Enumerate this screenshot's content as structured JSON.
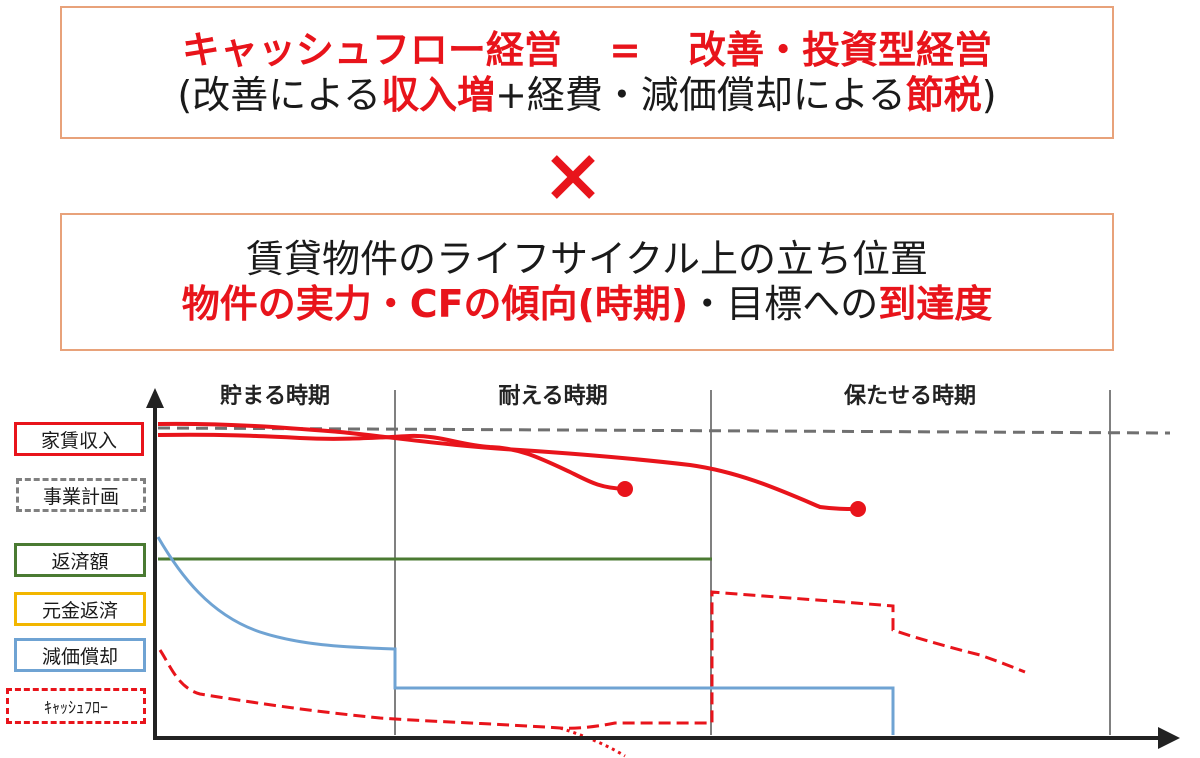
{
  "header": {
    "line1": {
      "a": "キャッシュフロー経営",
      "eq": "=",
      "b": "改善・投資型経営"
    },
    "line2": {
      "p0": "(改善による",
      "p1": "収入増",
      "p2": "+経費・減価償却による",
      "p3": "節税",
      "p4": ")"
    },
    "operator": "×"
  },
  "panel": {
    "line3": "賃貸物件のライフサイクル上の立ち位置",
    "line4": {
      "p0": "物件の実力・CFの傾向(時期)",
      "p1": "・目標への",
      "p2": "到達度"
    }
  },
  "chart": {
    "periods": [
      "貯まる時期",
      "耐える時期",
      "保たせる時期"
    ],
    "legend": [
      {
        "label": "家賃収入",
        "color": "#e8141b",
        "style": "solid"
      },
      {
        "label": "事業計画",
        "color": "#808080",
        "style": "dashed"
      },
      {
        "label": "返済額",
        "color": "#4a7a32",
        "style": "solid"
      },
      {
        "label": "元金返済",
        "color": "#f2b600",
        "style": "solid"
      },
      {
        "label": "減価償却",
        "color": "#6fa3d3",
        "style": "solid"
      },
      {
        "label": "ｷｬｯｼｭﾌﾛｰ",
        "color": "#e8141b",
        "style": "dashed"
      }
    ],
    "colors": {
      "red": "#e8141b",
      "gray": "#808080",
      "green": "#4a7a32",
      "blue": "#6fa3d3",
      "axis": "#222222"
    }
  }
}
